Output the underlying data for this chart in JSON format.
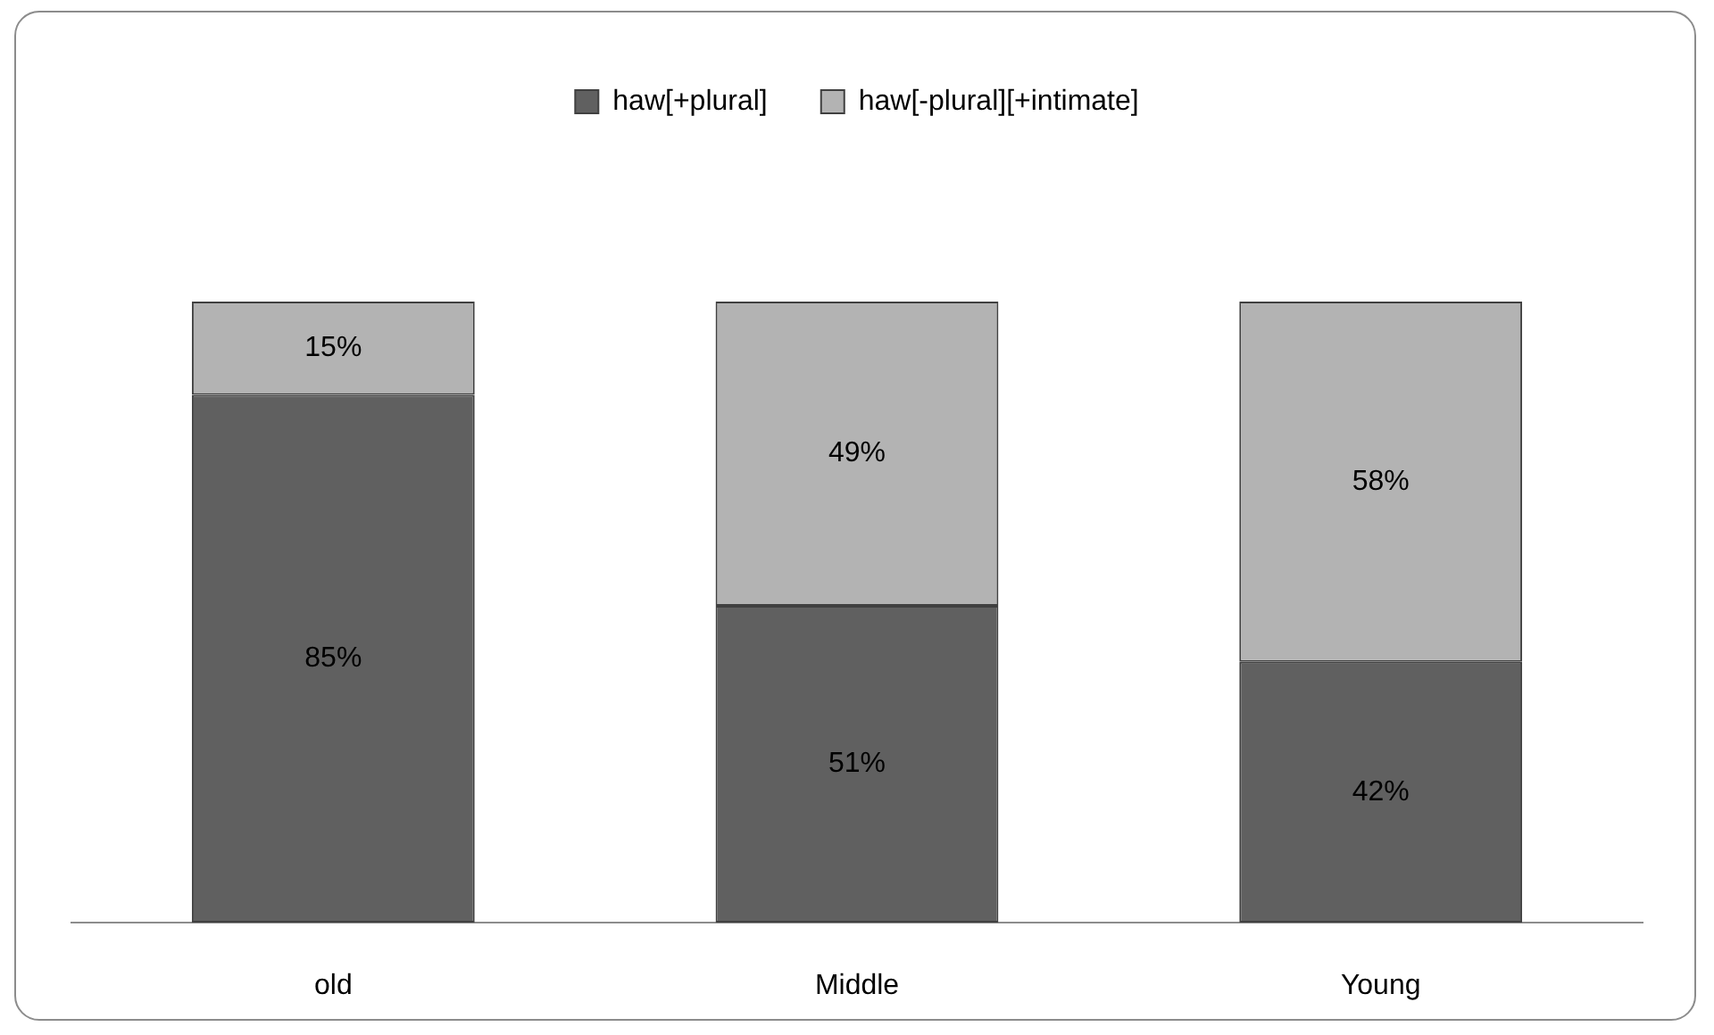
{
  "chart_data": {
    "type": "bar",
    "stacked": true,
    "categories": [
      "old",
      "Middle",
      "Young"
    ],
    "series": [
      {
        "name": "haw[+plural]",
        "color": "#606060",
        "values": [
          85,
          51,
          42
        ],
        "value_labels": [
          "85%",
          "51%",
          "42%"
        ]
      },
      {
        "name": "haw[-plural][+intimate]",
        "color": "#b3b3b3",
        "values": [
          15,
          49,
          58
        ],
        "value_labels": [
          "15%",
          "49%",
          "58%"
        ]
      }
    ],
    "legend": "top",
    "grid": false
  }
}
